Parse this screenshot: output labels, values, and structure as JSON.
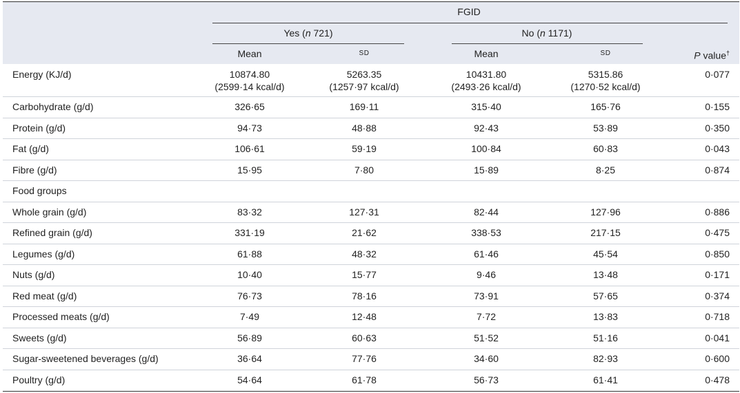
{
  "header": {
    "group": "FGID",
    "subgroups": [
      {
        "before": "Yes (",
        "n": "n",
        "after": " 721)"
      },
      {
        "before": "No (",
        "n": "n",
        "after": " 1171)"
      }
    ],
    "columns": [
      "Mean",
      "SD",
      "Mean",
      "SD"
    ],
    "p_value": {
      "p": "P",
      "text": " value",
      "mark": "†"
    }
  },
  "table": {
    "rows": [
      {
        "label": "Energy (KJ/d)",
        "values": [
          "10874.80",
          "5263.35",
          "10431.80",
          "5315.86",
          "0·077"
        ],
        "secondary": [
          "(2599·14 kcal/d)",
          "(1257·97 kcal/d)",
          "(2493·26 kcal/d)",
          "(1270·52 kcal/d)"
        ]
      },
      {
        "label": "Carbohydrate (g/d)",
        "values": [
          "326·65",
          "169·11",
          "315·40",
          "165·76",
          "0·155"
        ]
      },
      {
        "label": "Protein (g/d)",
        "values": [
          "94·73",
          "48·88",
          "92·43",
          "53·89",
          "0·350"
        ]
      },
      {
        "label": "Fat (g/d)",
        "values": [
          "106·61",
          "59·19",
          "100·84",
          "60·83",
          "0·043"
        ]
      },
      {
        "label": "Fibre (g/d)",
        "values": [
          "15·95",
          "7·80",
          "15·89",
          "8·25",
          "0·874"
        ]
      },
      {
        "label": "Food groups",
        "values": []
      },
      {
        "label": "Whole grain (g/d)",
        "values": [
          "83·32",
          "127·31",
          "82·44",
          "127·96",
          "0·886"
        ]
      },
      {
        "label": "Refined grain (g/d)",
        "values": [
          "331·19",
          "21·62",
          "338·53",
          "217·15",
          "0·475"
        ]
      },
      {
        "label": "Legumes (g/d)",
        "values": [
          "61·88",
          "48·32",
          "61·46",
          "45·54",
          "0·850"
        ]
      },
      {
        "label": "Nuts (g/d)",
        "values": [
          "10·40",
          "15·77",
          "9·46",
          "13·48",
          "0·171"
        ]
      },
      {
        "label": "Red meat (g/d)",
        "values": [
          "76·73",
          "78·16",
          "73·91",
          "57·65",
          "0·374"
        ]
      },
      {
        "label": "Processed meats (g/d)",
        "values": [
          "7·49",
          "12·48",
          "7·72",
          "13·83",
          "0·718"
        ]
      },
      {
        "label": "Sweets (g/d)",
        "values": [
          "56·89",
          "60·63",
          "51·52",
          "51·16",
          "0·041"
        ]
      },
      {
        "label": "Sugar-sweetened beverages (g/d)",
        "values": [
          "36·64",
          "77·76",
          "34·60",
          "82·93",
          "0·600"
        ]
      },
      {
        "label": "Poultry (g/d)",
        "values": [
          "54·64",
          "61·78",
          "56·73",
          "61·41",
          "0·478"
        ]
      }
    ]
  }
}
